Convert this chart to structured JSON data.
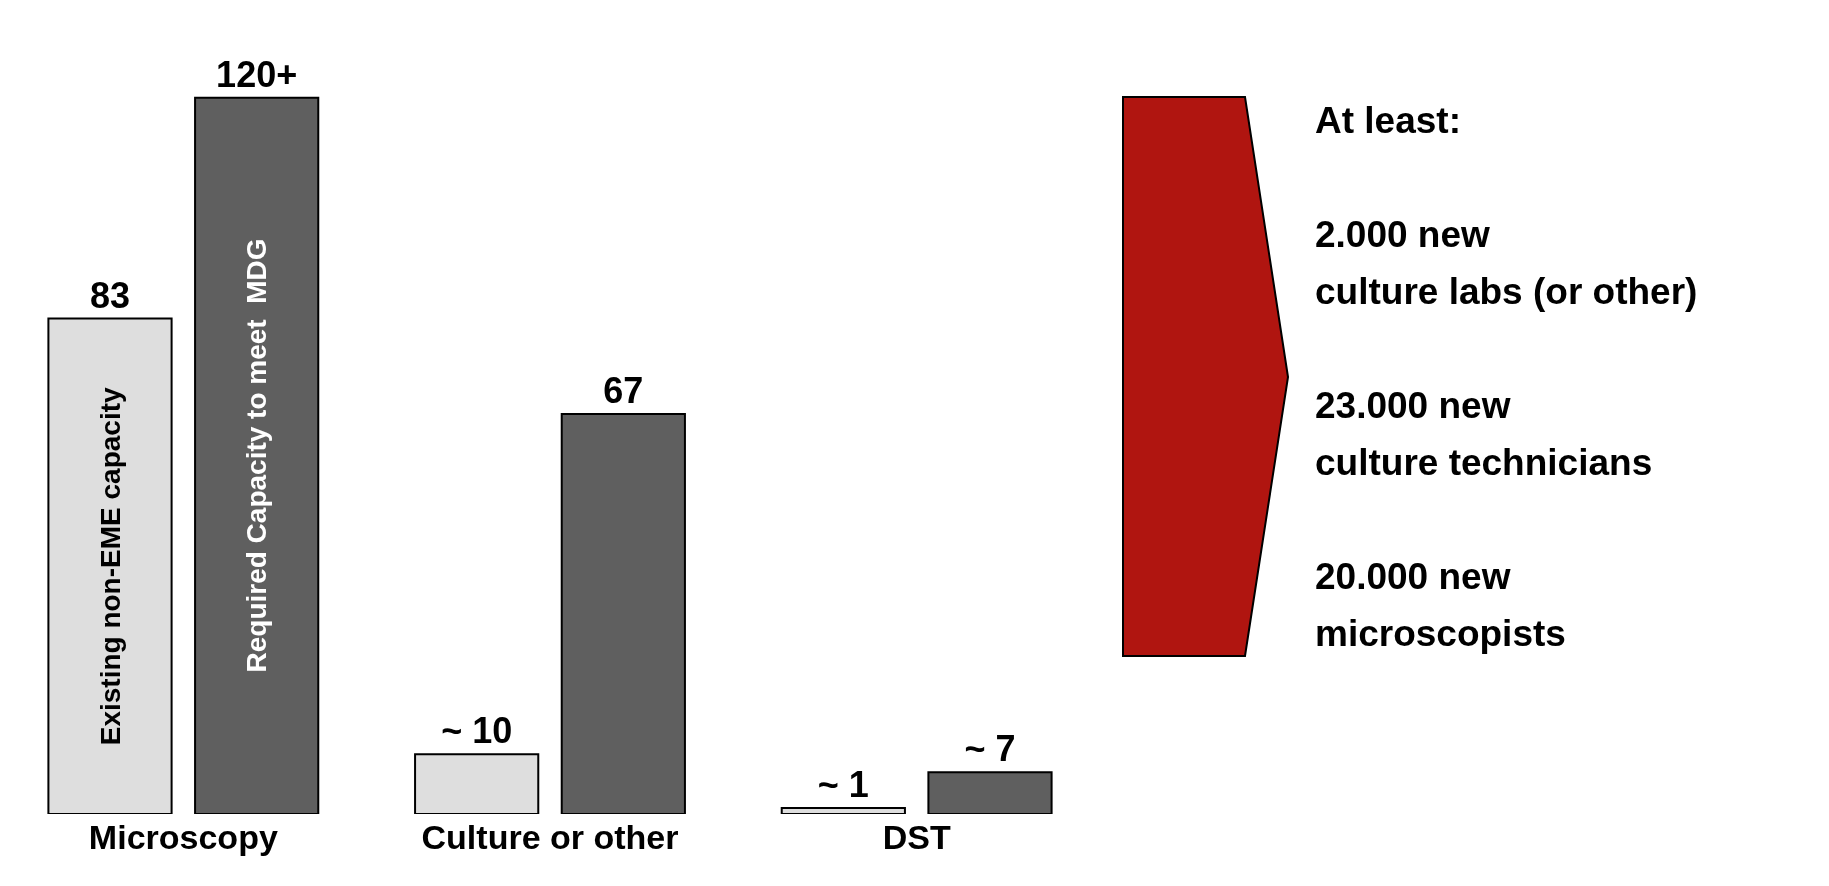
{
  "chart_data": {
    "type": "bar",
    "categories": [
      "Microscopy",
      "Culture or other",
      "DST"
    ],
    "series": [
      {
        "name": "Existing non-EME capacity",
        "color": "#dedede",
        "values": [
          83,
          10,
          1
        ],
        "value_labels": [
          "83",
          "~ 10",
          "~ 1"
        ]
      },
      {
        "name": "Required Capacity to meet  MDG",
        "color": "#5f5f5f",
        "values": [
          120,
          67,
          7
        ],
        "value_labels": [
          "120+",
          "67",
          "~ 7"
        ]
      }
    ],
    "legend": false,
    "grid": false,
    "annotations": [
      "At least:",
      "2.000 new\nculture labs (or other)",
      "23.000 new\nculture technicians",
      "20.000 new\nmicroscopists"
    ]
  }
}
